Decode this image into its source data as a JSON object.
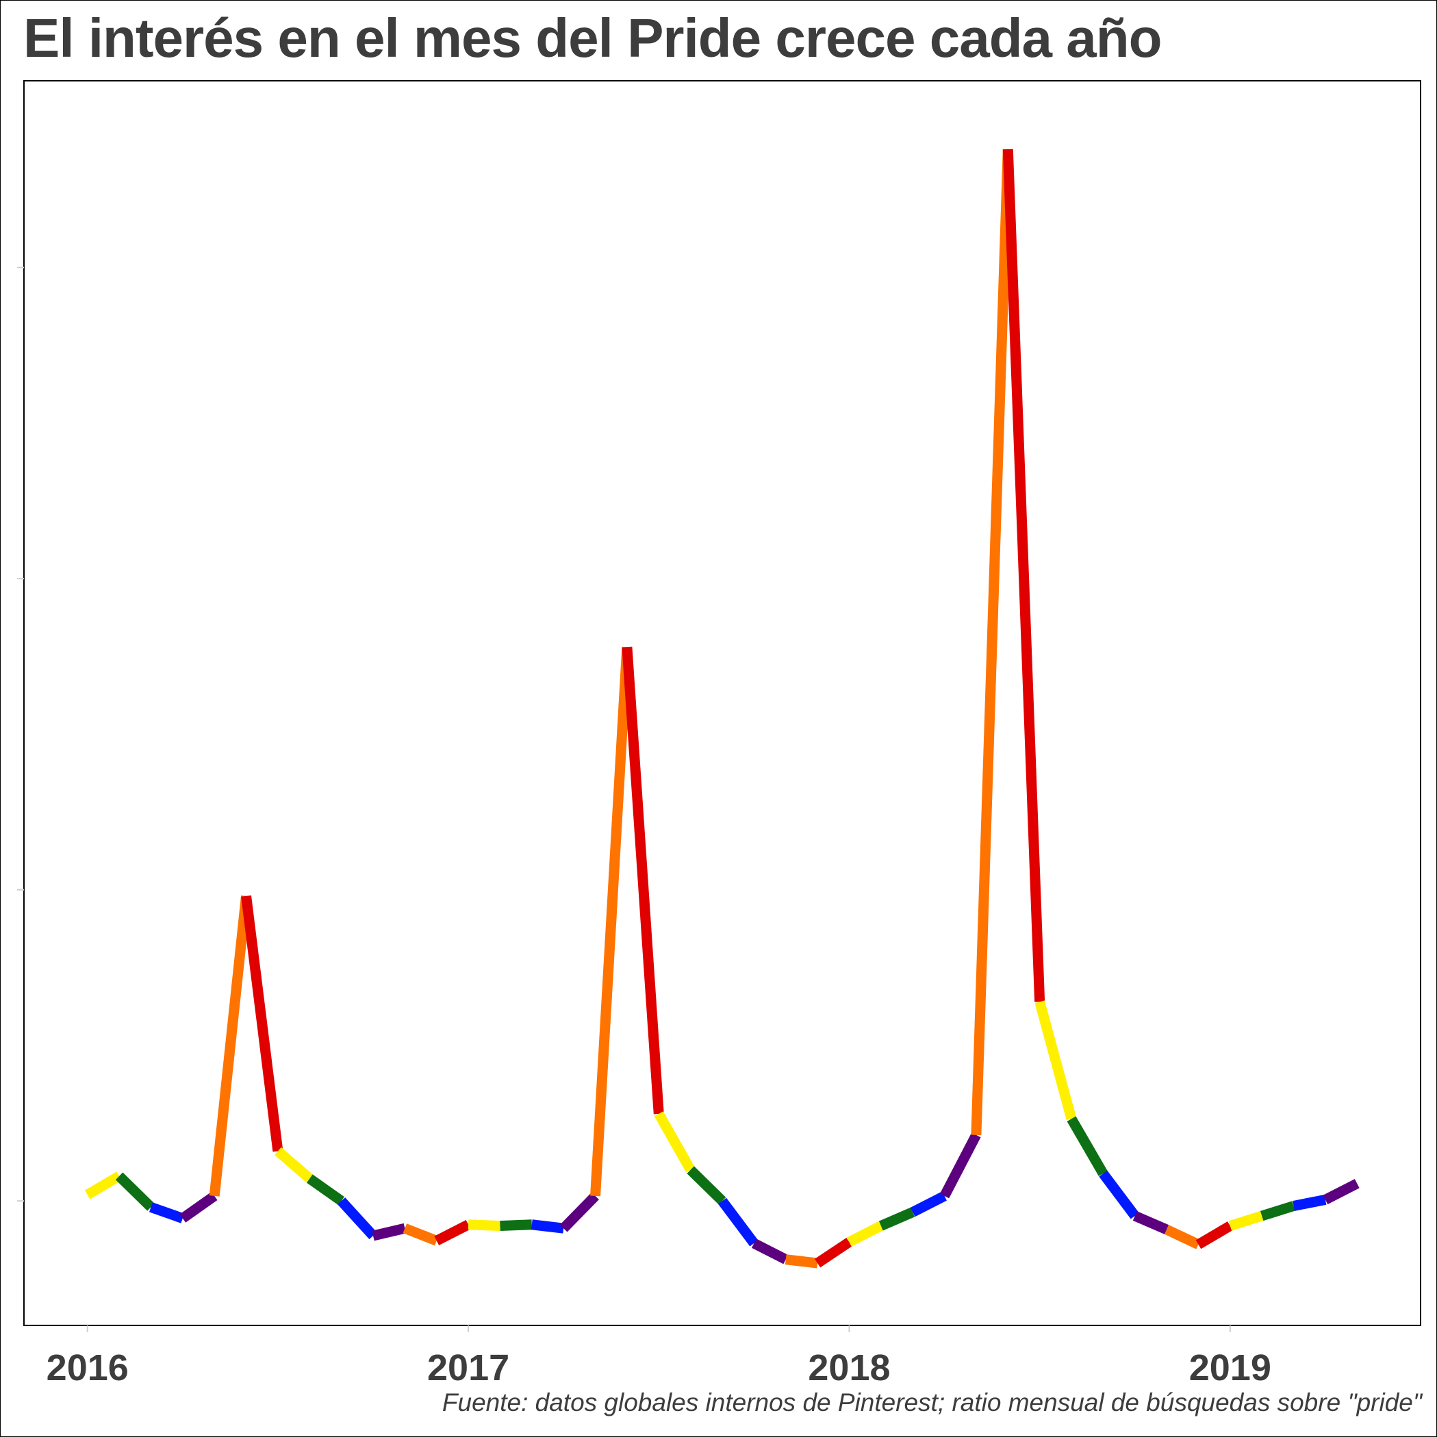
{
  "title": "El interés en el mes del Pride crece cada año",
  "source": "Fuente: datos globales internos de Pinterest; ratio mensual de búsquedas sobre \"pride\"",
  "chart_data": {
    "type": "line",
    "title": "El interés en el mes del Pride crece cada año",
    "xlabel": "",
    "ylabel": "",
    "x_ticks": [
      "2016",
      "2017",
      "2018",
      "2019"
    ],
    "x_tick_positions": [
      0,
      12,
      24,
      36
    ],
    "x_start_year": 2016,
    "xlim": [
      -2,
      42
    ],
    "ylim": [
      0,
      1
    ],
    "grid": false,
    "legend": "none",
    "y_axis_labels": "none",
    "segment_colors": [
      "#e00000",
      "#fff000",
      "#0d7014",
      "#0019ff",
      "#5c0080",
      "#ff7300"
    ],
    "x_month_index": [
      0,
      1,
      2,
      3,
      4,
      5,
      6,
      7,
      8,
      9,
      10,
      11,
      12,
      13,
      14,
      15,
      16,
      17,
      18,
      19,
      20,
      21,
      22,
      23,
      24,
      25,
      26,
      27,
      28,
      29,
      30,
      31,
      32,
      33,
      34,
      35,
      36,
      37,
      38,
      39,
      40
    ],
    "values": [
      0.105,
      0.12,
      0.095,
      0.086,
      0.104,
      0.345,
      0.14,
      0.118,
      0.1,
      0.072,
      0.078,
      0.068,
      0.081,
      0.08,
      0.081,
      0.078,
      0.104,
      0.545,
      0.17,
      0.125,
      0.1,
      0.066,
      0.053,
      0.05,
      0.067,
      0.08,
      0.091,
      0.104,
      0.153,
      0.945,
      0.26,
      0.166,
      0.122,
      0.088,
      0.077,
      0.065,
      0.08,
      0.088,
      0.096,
      0.101,
      0.114
    ]
  }
}
